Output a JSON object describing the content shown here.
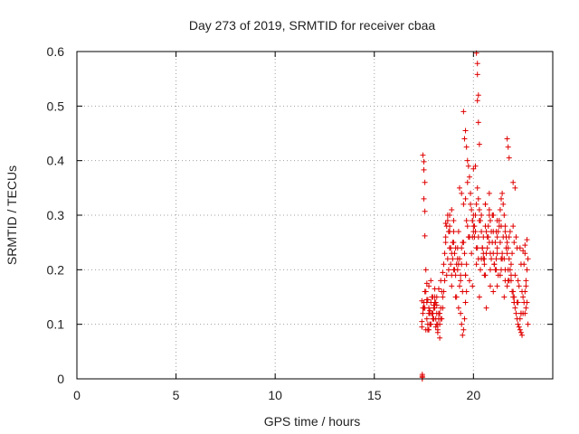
{
  "chart_data": {
    "type": "scatter",
    "title": "Day 273 of 2019, SRMTID for receiver cbaa",
    "xlabel": "GPS time / hours",
    "ylabel": "SRMTID / TECUs",
    "xlim": [
      0,
      24
    ],
    "ylim": [
      0,
      0.6
    ],
    "xticks": [
      0,
      5,
      10,
      15,
      20
    ],
    "yticks": [
      0,
      0.1,
      0.2,
      0.3,
      0.4,
      0.5,
      0.6
    ],
    "xtick_labels": [
      "0",
      "5",
      "10",
      "15",
      "20"
    ],
    "ytick_labels": [
      "0",
      "0.1",
      "0.2",
      "0.3",
      "0.4",
      "0.5",
      "0.6"
    ],
    "grid": true,
    "series": [
      {
        "name": "SRMTID",
        "color": "#e00000",
        "marker": "plus",
        "x": [
          17.4,
          17.4,
          17.4,
          17.45,
          17.5,
          17.5,
          17.55,
          17.5,
          17.55,
          17.55,
          17.6,
          17.5,
          17.45,
          17.6,
          17.65,
          17.7,
          17.75,
          17.8,
          17.85,
          17.9,
          17.95,
          18.0,
          18.05,
          18.1,
          18.15,
          18.2,
          17.7,
          17.8,
          17.9,
          18.0,
          18.1,
          18.2,
          18.3,
          18.25,
          18.35,
          18.4,
          17.65,
          17.75,
          17.85,
          17.95,
          18.05,
          18.15,
          18.3,
          18.45,
          18.5,
          18.55,
          18.6,
          18.65,
          18.7,
          18.75,
          18.8,
          18.85,
          18.9,
          18.95,
          19.0,
          18.6,
          18.7,
          18.8,
          18.9,
          19.0,
          19.1,
          19.2,
          19.3,
          19.15,
          19.25,
          19.35,
          19.4,
          19.45,
          19.5,
          19.55,
          19.6,
          19.65,
          19.3,
          19.4,
          19.5,
          19.6,
          19.7,
          19.75,
          19.8,
          19.85,
          19.9,
          19.95,
          20.0,
          20.05,
          20.1,
          20.15,
          20.2,
          20.25,
          20.3,
          20.35,
          20.4,
          20.45,
          20.5,
          20.55,
          20.6,
          20.65,
          20.7,
          20.75,
          20.8,
          20.85,
          20.9,
          20.95,
          21.0,
          21.05,
          21.1,
          21.15,
          21.2,
          21.25,
          21.3,
          21.35,
          21.4,
          21.45,
          21.5,
          21.55,
          21.6,
          21.65,
          21.7,
          21.75,
          21.8,
          21.85,
          21.9,
          21.95,
          22.0,
          22.05,
          22.1,
          22.15,
          22.2,
          22.25,
          22.3,
          22.35,
          22.4,
          22.45,
          22.5,
          22.55,
          22.6,
          22.65,
          22.7,
          22.75,
          22.5,
          22.6,
          22.7,
          20.15,
          20.2,
          20.2,
          20.25,
          20.2,
          20.25,
          19.5,
          19.6,
          19.55,
          19.65,
          19.7,
          20.0,
          20.1,
          20.3,
          21.7,
          21.75,
          21.8,
          22.0,
          22.1,
          20.6,
          20.8,
          21.0,
          21.2,
          21.4,
          21.6,
          19.0,
          19.2,
          19.4,
          19.8,
          20.0,
          20.4,
          20.6,
          20.8,
          21.0,
          21.2,
          21.4,
          21.6,
          21.8,
          22.0,
          22.2,
          22.4,
          18.6,
          18.8,
          19.0,
          19.2,
          19.4,
          19.6,
          19.8,
          20.0,
          20.2,
          20.4,
          20.6,
          20.8,
          21.0,
          21.2,
          21.4,
          21.6,
          21.8,
          22.0,
          22.2,
          22.4,
          22.6,
          18.9,
          19.1,
          19.3,
          19.5,
          19.7,
          19.9,
          20.1,
          20.3,
          20.5,
          20.7,
          20.9,
          21.1,
          21.3,
          21.5,
          21.7,
          21.9,
          22.1,
          22.3,
          22.5,
          22.7,
          18.7,
          18.95,
          19.15,
          19.35,
          19.55,
          19.75,
          19.95,
          20.15,
          20.35,
          20.55,
          20.75,
          20.95,
          21.15,
          21.35,
          21.55,
          21.75,
          21.95,
          22.15,
          22.35,
          22.55,
          18.8,
          19.05,
          19.25,
          19.45,
          19.65,
          19.85,
          20.05,
          20.25,
          20.45,
          20.65,
          20.85,
          21.05,
          21.25,
          21.45,
          21.65,
          21.85,
          22.05,
          22.25,
          22.45,
          22.65,
          18.65,
          18.85,
          19.05,
          19.35,
          19.65,
          19.95,
          20.25,
          20.55,
          20.85,
          21.15,
          21.45,
          21.75,
          22.05,
          22.35,
          22.65,
          18.75,
          19.1,
          19.45,
          19.8,
          20.15,
          20.5,
          20.85,
          21.2,
          21.55,
          21.9,
          22.25,
          22.6,
          18.55,
          18.9,
          19.25,
          19.6,
          19.95,
          20.3,
          20.65,
          21.0,
          21.35,
          21.7,
          22.05,
          22.4,
          22.75,
          18.45,
          18.35,
          18.25,
          18.15,
          18.05,
          17.95,
          17.85,
          17.75,
          17.65,
          17.55,
          17.45,
          18.4,
          18.3,
          18.2,
          18.1,
          18.0,
          17.9,
          17.8,
          17.7,
          17.6,
          17.5,
          18.5,
          18.45,
          18.35,
          18.25,
          18.15,
          18.05,
          17.95,
          17.85,
          17.75,
          17.65,
          17.55,
          17.42,
          17.42,
          17.42,
          17.42
        ],
        "y": [
          0.143,
          0.105,
          0.095,
          0.41,
          0.398,
          0.383,
          0.36,
          0.33,
          0.307,
          0.262,
          0.2,
          0.13,
          0.12,
          0.16,
          0.175,
          0.145,
          0.13,
          0.125,
          0.14,
          0.12,
          0.11,
          0.135,
          0.15,
          0.14,
          0.12,
          0.1,
          0.09,
          0.1,
          0.12,
          0.11,
          0.095,
          0.085,
          0.075,
          0.165,
          0.18,
          0.16,
          0.145,
          0.17,
          0.18,
          0.15,
          0.165,
          0.135,
          0.12,
          0.195,
          0.21,
          0.23,
          0.26,
          0.28,
          0.3,
          0.27,
          0.24,
          0.21,
          0.19,
          0.22,
          0.25,
          0.285,
          0.29,
          0.3,
          0.31,
          0.27,
          0.24,
          0.2,
          0.17,
          0.15,
          0.13,
          0.12,
          0.1,
          0.08,
          0.09,
          0.11,
          0.14,
          0.16,
          0.35,
          0.34,
          0.32,
          0.33,
          0.36,
          0.39,
          0.37,
          0.34,
          0.31,
          0.29,
          0.27,
          0.26,
          0.3,
          0.32,
          0.35,
          0.33,
          0.31,
          0.29,
          0.27,
          0.24,
          0.22,
          0.21,
          0.19,
          0.23,
          0.26,
          0.28,
          0.3,
          0.29,
          0.27,
          0.25,
          0.23,
          0.21,
          0.2,
          0.22,
          0.24,
          0.27,
          0.29,
          0.31,
          0.33,
          0.34,
          0.32,
          0.3,
          0.28,
          0.26,
          0.25,
          0.24,
          0.22,
          0.2,
          0.18,
          0.16,
          0.15,
          0.14,
          0.13,
          0.12,
          0.11,
          0.1,
          0.095,
          0.09,
          0.085,
          0.08,
          0.12,
          0.14,
          0.16,
          0.18,
          0.2,
          0.22,
          0.235,
          0.245,
          0.255,
          0.597,
          0.578,
          0.558,
          0.52,
          0.51,
          0.47,
          0.49,
          0.455,
          0.44,
          0.425,
          0.4,
          0.385,
          0.39,
          0.43,
          0.44,
          0.425,
          0.405,
          0.36,
          0.35,
          0.32,
          0.31,
          0.3,
          0.29,
          0.28,
          0.27,
          0.2,
          0.22,
          0.24,
          0.26,
          0.28,
          0.3,
          0.32,
          0.34,
          0.3,
          0.26,
          0.22,
          0.2,
          0.18,
          0.16,
          0.14,
          0.12,
          0.25,
          0.27,
          0.29,
          0.24,
          0.21,
          0.19,
          0.26,
          0.3,
          0.24,
          0.22,
          0.28,
          0.25,
          0.27,
          0.23,
          0.2,
          0.18,
          0.26,
          0.28,
          0.24,
          0.21,
          0.23,
          0.17,
          0.19,
          0.22,
          0.25,
          0.28,
          0.23,
          0.27,
          0.29,
          0.26,
          0.24,
          0.22,
          0.25,
          0.28,
          0.26,
          0.23,
          0.21,
          0.19,
          0.17,
          0.15,
          0.14,
          0.22,
          0.25,
          0.21,
          0.19,
          0.23,
          0.26,
          0.29,
          0.24,
          0.2,
          0.22,
          0.26,
          0.3,
          0.27,
          0.25,
          0.22,
          0.2,
          0.23,
          0.26,
          0.24,
          0.21,
          0.28,
          0.23,
          0.27,
          0.25,
          0.29,
          0.32,
          0.28,
          0.26,
          0.24,
          0.27,
          0.23,
          0.21,
          0.19,
          0.22,
          0.24,
          0.27,
          0.25,
          0.18,
          0.16,
          0.13,
          0.19,
          0.24,
          0.2,
          0.18,
          0.21,
          0.26,
          0.22,
          0.19,
          0.17,
          0.2,
          0.23,
          0.18,
          0.15,
          0.11,
          0.17,
          0.2,
          0.15,
          0.16,
          0.18,
          0.21,
          0.23,
          0.2,
          0.17,
          0.15,
          0.19,
          0.14,
          0.12,
          0.18,
          0.23,
          0.21,
          0.19,
          0.17,
          0.15,
          0.13,
          0.16,
          0.19,
          0.17,
          0.14,
          0.12,
          0.1,
          0.15,
          0.13,
          0.11,
          0.15,
          0.13,
          0.11,
          0.1,
          0.12,
          0.14,
          0.16,
          0.13,
          0.11,
          0.1,
          0.09,
          0.11,
          0.13,
          0.15,
          0.12,
          0.1,
          0.09,
          0.14,
          0.16,
          0.13,
          0.11,
          0.12,
          0.1,
          0.14,
          0.12,
          0.1,
          0.09,
          0.11,
          0.13,
          0.0,
          0.003,
          0.005,
          0.008
        ]
      }
    ]
  }
}
